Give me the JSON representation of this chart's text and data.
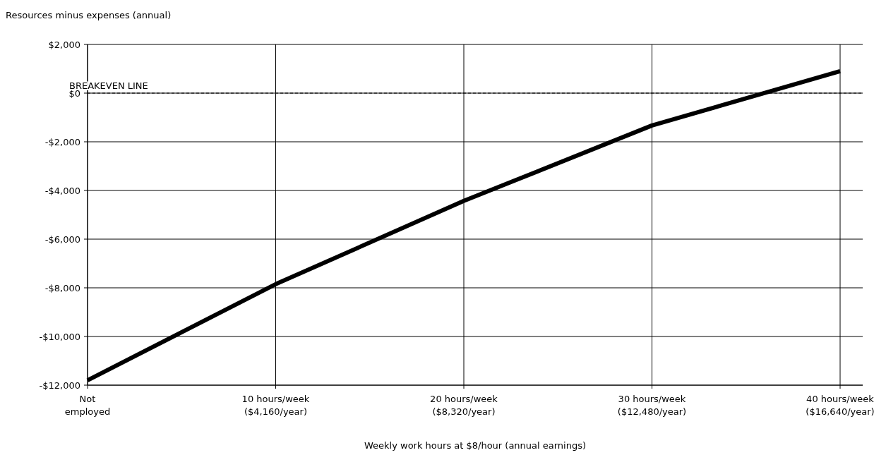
{
  "chart_data": {
    "type": "line",
    "ylabel": "Resources minus expenses (annual)",
    "xlabel": "Weekly work hours at $8/hour (annual earnings)",
    "categories": [
      "Not\nemployed",
      "10 hours/week\n($4,160/year)",
      "20 hours/week\n($8,320/year)",
      "30 hours/week\n($12,480/year)",
      "40 hours/week\n($16,640/year)"
    ],
    "series": [
      {
        "color": "#000000",
        "values": [
          -11800,
          -7850,
          -4430,
          -1330,
          900
        ]
      }
    ],
    "ylim": [
      -12000,
      2000
    ],
    "yticks": [
      {
        "value": 2000,
        "label": "$2,000"
      },
      {
        "value": 0,
        "label": "$0"
      },
      {
        "value": -2000,
        "label": "-$2,000"
      },
      {
        "value": -4000,
        "label": "-$4,000"
      },
      {
        "value": -6000,
        "label": "-$6,000"
      },
      {
        "value": -8000,
        "label": "-$8,000"
      },
      {
        "value": -10000,
        "label": "-$10,000"
      },
      {
        "value": -12000,
        "label": "-$12,000"
      }
    ],
    "grid": true,
    "line_style": "solid",
    "marker": "none",
    "ref_lines": [
      {
        "axis": "y",
        "value": 0,
        "label": "BREAKEVEN LINE",
        "line_style": "dashed",
        "color": "#000000"
      }
    ]
  }
}
